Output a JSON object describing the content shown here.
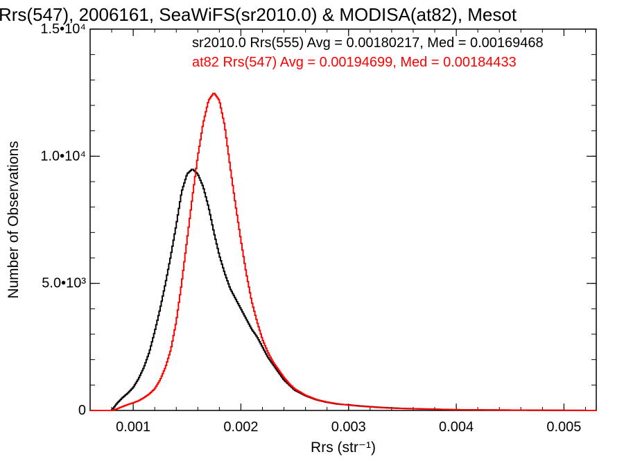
{
  "chart_data": {
    "type": "line",
    "title": "Rrs(547), 2006161, SeaWiFS(sr2010.0) & MODISA(at82), Mesot",
    "xlabel": "Rrs (str⁻¹)",
    "ylabel": "Number of Observations",
    "xlim": [
      0.0006,
      0.0053
    ],
    "ylim": [
      0,
      15000
    ],
    "x_ticks": [
      {
        "value": 0.001,
        "label": "0.001"
      },
      {
        "value": 0.002,
        "label": "0.002"
      },
      {
        "value": 0.003,
        "label": "0.003"
      },
      {
        "value": 0.004,
        "label": "0.004"
      },
      {
        "value": 0.005,
        "label": "0.005"
      }
    ],
    "y_ticks": [
      {
        "value": 0,
        "label": "0"
      },
      {
        "value": 5000,
        "label": "5.0•10³"
      },
      {
        "value": 10000,
        "label": "1.0•10⁴"
      },
      {
        "value": 15000,
        "label": "1.5•10⁴"
      }
    ],
    "grid": false,
    "annotations": [
      {
        "text": "sr2010.0 Rrs(555) Avg = 0.00180217, Med = 0.00169468",
        "color": "#000000"
      },
      {
        "text": "at82 Rrs(547) Avg = 0.00194699, Med = 0.00184433",
        "color": "#ff0000"
      }
    ],
    "series": [
      {
        "color": "#000000",
        "x": [
          0.0008,
          0.00085,
          0.0009,
          0.00095,
          0.001,
          0.00105,
          0.0011,
          0.00115,
          0.0012,
          0.00125,
          0.0013,
          0.00135,
          0.0014,
          0.00145,
          0.0015,
          0.00155,
          0.0016,
          0.00165,
          0.0017,
          0.00175,
          0.0018,
          0.00185,
          0.0019,
          0.00195,
          0.002,
          0.00205,
          0.0021,
          0.00215,
          0.0022,
          0.00225,
          0.0023,
          0.00235,
          0.0024,
          0.00245,
          0.0025,
          0.0026,
          0.0027,
          0.0028,
          0.0029,
          0.003,
          0.0031,
          0.0032,
          0.0033,
          0.0034,
          0.0035,
          0.0037,
          0.004,
          0.0045,
          0.005,
          0.0053
        ],
        "y": [
          0,
          280,
          500,
          680,
          900,
          1250,
          1700,
          2300,
          3100,
          4000,
          5000,
          6100,
          7300,
          8600,
          9300,
          9500,
          9300,
          8800,
          8000,
          7000,
          6100,
          5400,
          4800,
          4400,
          4000,
          3600,
          3200,
          2900,
          2500,
          2100,
          1800,
          1500,
          1200,
          1000,
          800,
          580,
          420,
          320,
          250,
          220,
          180,
          150,
          120,
          100,
          80,
          60,
          30,
          15,
          5,
          0
        ]
      },
      {
        "color": "#ff0000",
        "x": [
          0.0008,
          0.00085,
          0.0009,
          0.00095,
          0.001,
          0.00105,
          0.0011,
          0.00115,
          0.0012,
          0.00125,
          0.0013,
          0.00135,
          0.0014,
          0.00145,
          0.0015,
          0.00155,
          0.0016,
          0.00165,
          0.0017,
          0.00175,
          0.0018,
          0.00185,
          0.0019,
          0.00195,
          0.002,
          0.00205,
          0.0021,
          0.00215,
          0.0022,
          0.00225,
          0.0023,
          0.00235,
          0.0024,
          0.00245,
          0.0025,
          0.0026,
          0.0027,
          0.0028,
          0.0029,
          0.003,
          0.0031,
          0.0032,
          0.0033,
          0.0034,
          0.0035,
          0.0037,
          0.004,
          0.0045,
          0.005,
          0.0053
        ],
        "y": [
          0,
          60,
          150,
          230,
          300,
          380,
          500,
          650,
          850,
          1200,
          1700,
          2400,
          3500,
          5000,
          6700,
          8400,
          10000,
          11300,
          12200,
          12500,
          12200,
          11200,
          9600,
          8100,
          6700,
          5400,
          4300,
          3500,
          2800,
          2300,
          1900,
          1600,
          1300,
          1050,
          850,
          600,
          430,
          330,
          260,
          210,
          170,
          140,
          110,
          90,
          80,
          55,
          30,
          15,
          5,
          0
        ]
      }
    ]
  }
}
